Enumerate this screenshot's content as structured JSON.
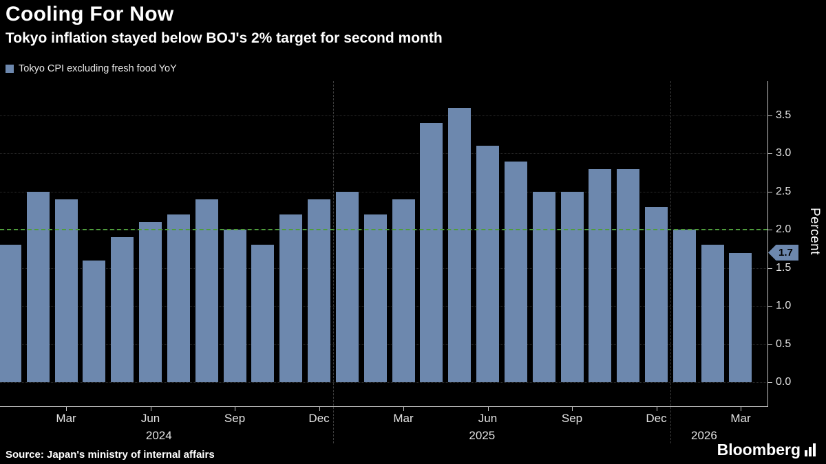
{
  "header": {
    "title": "Cooling For Now",
    "subtitle": "Tokyo inflation stayed below BOJ's 2% target for second month",
    "legend_label": "Tokyo CPI excluding fresh food YoY"
  },
  "chart_data": {
    "type": "bar",
    "title": "Cooling For Now",
    "subtitle": "Tokyo inflation stayed below BOJ's 2% target for second month",
    "legend": "Tokyo CPI excluding fresh food YoY",
    "xlabel": "",
    "ylabel": "Percent",
    "ylim": [
      0,
      3.95
    ],
    "yticks": [
      0.0,
      0.5,
      1.0,
      1.5,
      2.0,
      2.5,
      3.0,
      3.5
    ],
    "grid": true,
    "legend_position": "top-left",
    "bar_color": "#6d88ae",
    "target_line_color": "#4f9d3c",
    "target_value": 2.0,
    "last_value_label": "1.7",
    "categories": [
      "Jan 2024",
      "Feb 2024",
      "Mar 2024",
      "Apr 2024",
      "May 2024",
      "Jun 2024",
      "Jul 2024",
      "Aug 2024",
      "Sep 2024",
      "Oct 2024",
      "Nov 2024",
      "Dec 2024",
      "Jan 2025",
      "Feb 2025",
      "Mar 2025",
      "Apr 2025",
      "May 2025",
      "Jun 2025",
      "Jul 2025",
      "Aug 2025",
      "Sep 2025",
      "Oct 2025",
      "Nov 2025",
      "Dec 2025",
      "Jan 2026",
      "Feb 2026",
      "Mar 2026"
    ],
    "values": [
      1.8,
      2.5,
      2.4,
      1.6,
      1.9,
      2.1,
      2.2,
      2.4,
      2.0,
      1.8,
      2.2,
      2.4,
      2.5,
      2.2,
      2.4,
      3.4,
      3.6,
      3.1,
      2.9,
      2.5,
      2.5,
      2.8,
      2.8,
      2.3,
      2.0,
      1.8,
      1.7
    ],
    "xticks": [
      {
        "index": 2,
        "label": "Mar"
      },
      {
        "index": 5,
        "label": "Jun"
      },
      {
        "index": 8,
        "label": "Sep"
      },
      {
        "index": 11,
        "label": "Dec"
      },
      {
        "index": 14,
        "label": "Mar"
      },
      {
        "index": 17,
        "label": "Jun"
      },
      {
        "index": 20,
        "label": "Sep"
      },
      {
        "index": 23,
        "label": "Dec"
      },
      {
        "index": 26,
        "label": "Mar"
      }
    ],
    "year_labels": [
      {
        "center_index": 5.3,
        "label": "2024"
      },
      {
        "center_index": 16.8,
        "label": "2025"
      },
      {
        "center_index": 24.7,
        "label": "2026"
      }
    ],
    "year_boundaries": [
      12,
      24
    ]
  },
  "footer": {
    "source": "Source: Japan's ministry of internal affairs",
    "brand": "Bloomberg"
  }
}
